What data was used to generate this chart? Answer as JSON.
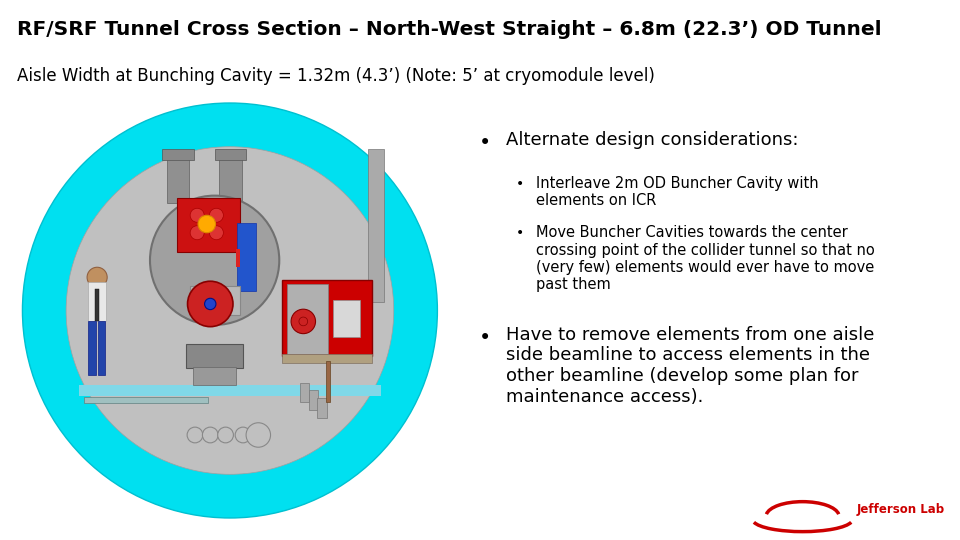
{
  "title": "RF/SRF Tunnel Cross Section – North-West Straight – 6.8m (22.3’) OD Tunnel",
  "subtitle": "Aisle Width at Bunching Cavity = 1.32m (4.3’) (Note: 5’ at cryomodule level)",
  "title_color": "#000000",
  "title_bar_color": "#8b0000",
  "subtitle_color": "#000000",
  "background_color": "#ffffff",
  "bullet1": "Alternate design considerations:",
  "sub_bullet1": "Interleave 2m OD Buncher Cavity with\nelements on ICR",
  "sub_bullet2": "Move Buncher Cavities towards the center\ncrossing point of the collider tunnel so that no\n(very few) elements would ever have to move\npast them",
  "bullet2": "Have to remove elements from one aisle\nside beamline to access elements in the\nother beamline (develop some plan for\nmaintenance access).",
  "title_fontsize": 14.5,
  "subtitle_fontsize": 12,
  "bullet_fontsize": 13,
  "sub_bullet_fontsize": 10.5
}
